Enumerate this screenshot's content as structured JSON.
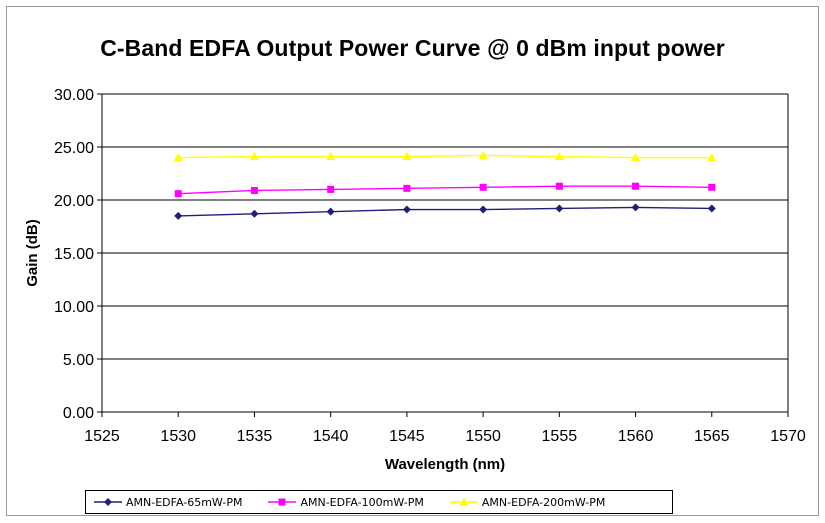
{
  "chart_data": {
    "type": "line",
    "title": "C-Band EDFA Output Power Curve @ 0 dBm input power",
    "xlabel": "Wavelength (nm)",
    "ylabel": "Gain (dB)",
    "xlim": [
      1525,
      1570
    ],
    "ylim": [
      0,
      30
    ],
    "x_ticks": [
      "1525",
      "1530",
      "1535",
      "1540",
      "1545",
      "1550",
      "1555",
      "1560",
      "1565",
      "1570"
    ],
    "y_ticks": [
      "0.00",
      "5.00",
      "10.00",
      "15.00",
      "20.00",
      "25.00",
      "30.00"
    ],
    "grid": "horizontal",
    "legend_position": "bottom",
    "x": [
      1530,
      1535,
      1540,
      1545,
      1550,
      1555,
      1560,
      1565
    ],
    "series": [
      {
        "name": "AMN-EDFA-65mW-PM",
        "color": "#1f1f7a",
        "marker": "diamond",
        "values": [
          18.5,
          18.7,
          18.9,
          19.1,
          19.1,
          19.2,
          19.3,
          19.2
        ]
      },
      {
        "name": "AMN-EDFA-100mW-PM",
        "color": "#ff00ff",
        "marker": "square",
        "values": [
          20.6,
          20.9,
          21.0,
          21.1,
          21.2,
          21.3,
          21.3,
          21.2
        ]
      },
      {
        "name": "AMN-EDFA-200mW-PM",
        "color": "#ffff00",
        "marker": "triangle",
        "values": [
          24.0,
          24.1,
          24.1,
          24.1,
          24.2,
          24.1,
          24.0,
          24.0
        ]
      }
    ]
  }
}
